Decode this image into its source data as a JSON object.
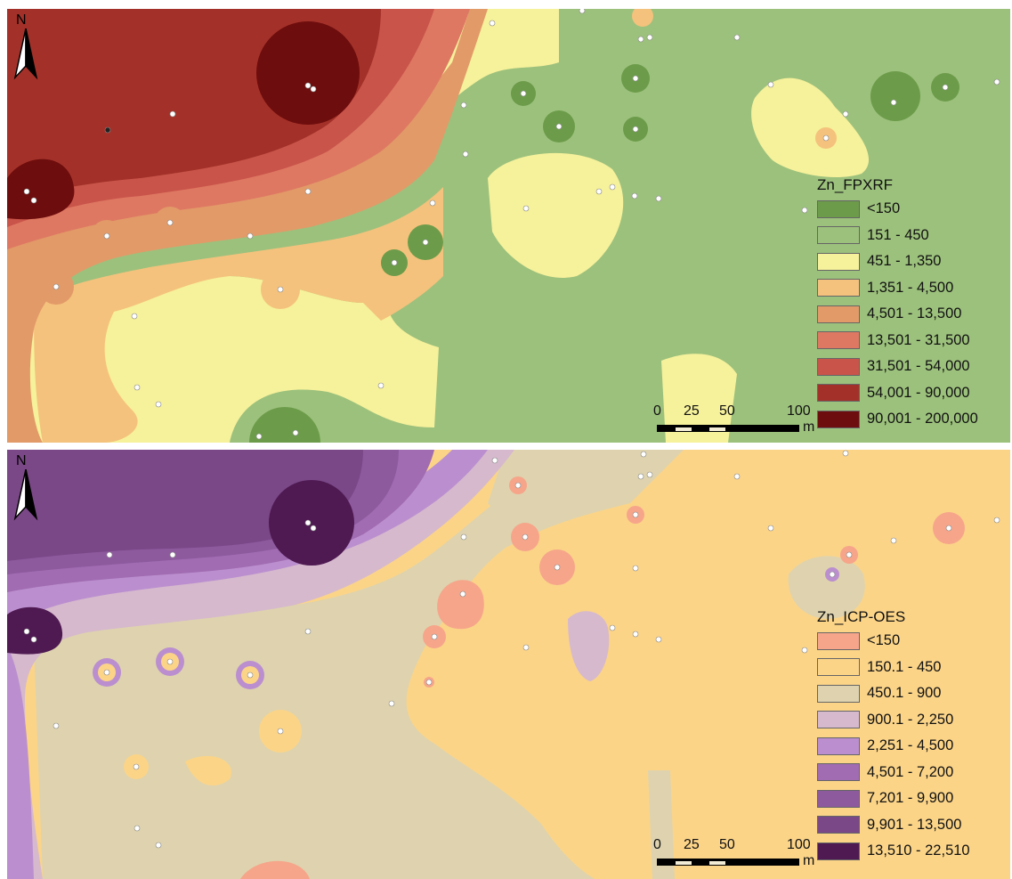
{
  "maps": [
    {
      "legend": {
        "title": "Zn_FPXRF",
        "items": [
          {
            "label": "<150",
            "color": "#6c9c4a"
          },
          {
            "label": "151 - 450",
            "color": "#9cc17c"
          },
          {
            "label": "451 - 1,350",
            "color": "#f6f19b"
          },
          {
            "label": "1,351 - 4,500",
            "color": "#f4c27c"
          },
          {
            "label": "4,501 - 13,500",
            "color": "#e29a68"
          },
          {
            "label": "13,501 - 31,500",
            "color": "#de7862"
          },
          {
            "label": "31,501 - 54,000",
            "color": "#c9544a"
          },
          {
            "label": "54,001 - 90,000",
            "color": "#a33129"
          },
          {
            "label": "90,001 - 200,000",
            "color": "#6e0d0d"
          }
        ]
      },
      "north_label": "N",
      "scale": {
        "labels": [
          "0",
          "25",
          "50",
          "100"
        ],
        "unit": "m"
      }
    },
    {
      "legend": {
        "title": "Zn_ICP-OES",
        "items": [
          {
            "label": "<150",
            "color": "#f6a58a"
          },
          {
            "label": "150.1 - 450",
            "color": "#fbd488"
          },
          {
            "label": "450.1 - 900",
            "color": "#ded3ae"
          },
          {
            "label": "900.1 - 2,250",
            "color": "#d6b9cd"
          },
          {
            "label": "2,251 - 4,500",
            "color": "#bb8fcf"
          },
          {
            "label": "4,501 - 7,200",
            "color": "#a16cb2"
          },
          {
            "label": "7,201 - 9,900",
            "color": "#8e5a9e"
          },
          {
            "label": "9,901 - 13,500",
            "color": "#7a4887"
          },
          {
            "label": "13,510 - 22,510",
            "color": "#4f1a52"
          }
        ]
      },
      "north_label": "N",
      "scale": {
        "labels": [
          "0",
          "25",
          "50",
          "100"
        ],
        "unit": "m"
      }
    }
  ]
}
